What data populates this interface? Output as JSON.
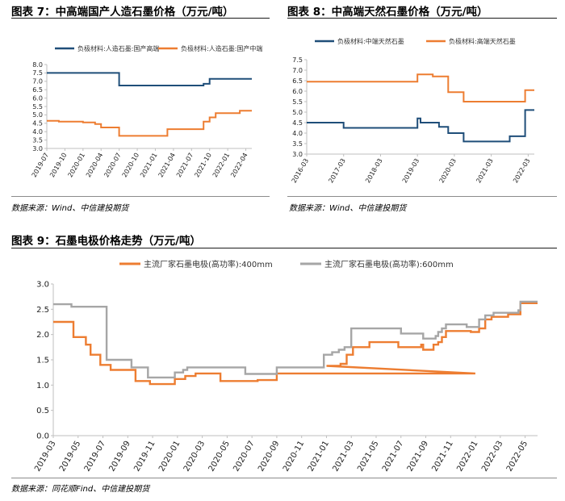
{
  "fig7": {
    "title": "图表 7：中高端国产人造石墨价格（万元/吨）",
    "source": "数据来源：Wind、中信建投期货"
  },
  "fig8": {
    "title": "图表 8：中高端天然石墨价格（万元/吨）",
    "source": "数据来源：Wind、中信建投期货"
  },
  "fig9": {
    "title": "图表 9：石墨电极价格走势（万元/吨）",
    "source": "数据来源：同花顺Find、中信建投期货"
  },
  "colors": {
    "blue": "#1f4e79",
    "orange": "#ed7d31",
    "gray": "#a6a6a6",
    "axis": "#bfbfbf"
  },
  "chart_data": [
    {
      "type": "line",
      "title": "",
      "xlabel": "",
      "ylabel": "",
      "ylim": [
        3.0,
        8.0
      ],
      "xlim": [
        "2019-07",
        "2022-05"
      ],
      "yticks": [
        "8.0",
        "7.5",
        "7.0",
        "6.5",
        "6.0",
        "5.5",
        "5.0",
        "4.5",
        "4.0",
        "3.5",
        "3.0"
      ],
      "xticks": [
        "2019-07",
        "2019-10",
        "2020-01",
        "2020-04",
        "2020-07",
        "2020-10",
        "2021-01",
        "2021-04",
        "2021-07",
        "2021-10",
        "2022-01",
        "2022-04"
      ],
      "legend_position": "top",
      "grid": false,
      "series": [
        {
          "name": "负极材料:人造石墨:国产高端",
          "color": "blue",
          "points": [
            [
              "2019-07",
              7.5
            ],
            [
              "2020-07",
              7.5
            ],
            [
              "2020-07",
              6.75
            ],
            [
              "2021-09",
              6.75
            ],
            [
              "2021-09",
              6.85
            ],
            [
              "2021-10",
              6.85
            ],
            [
              "2021-10",
              7.15
            ],
            [
              "2022-05",
              7.15
            ]
          ]
        },
        {
          "name": "负极材料:人造石墨:国产中端",
          "color": "orange",
          "points": [
            [
              "2019-07",
              4.65
            ],
            [
              "2019-09",
              4.65
            ],
            [
              "2019-09",
              4.6
            ],
            [
              "2020-01",
              4.6
            ],
            [
              "2020-01",
              4.55
            ],
            [
              "2020-03",
              4.55
            ],
            [
              "2020-03",
              4.45
            ],
            [
              "2020-04",
              4.45
            ],
            [
              "2020-04",
              4.25
            ],
            [
              "2020-07",
              4.25
            ],
            [
              "2020-07",
              3.75
            ],
            [
              "2021-03",
              3.75
            ],
            [
              "2021-03",
              4.15
            ],
            [
              "2021-09",
              4.15
            ],
            [
              "2021-09",
              4.6
            ],
            [
              "2021-10",
              4.6
            ],
            [
              "2021-10",
              4.85
            ],
            [
              "2021-11",
              4.85
            ],
            [
              "2021-11",
              5.1
            ],
            [
              "2022-03",
              5.1
            ],
            [
              "2022-03",
              5.25
            ],
            [
              "2022-05",
              5.25
            ]
          ]
        }
      ]
    },
    {
      "type": "line",
      "title": "",
      "xlabel": "",
      "ylabel": "",
      "ylim": [
        3.0,
        7.5
      ],
      "xlim": [
        "2016-03",
        "2022-05"
      ],
      "yticks": [
        "7.5",
        "7.0",
        "6.5",
        "6.0",
        "5.5",
        "5.0",
        "4.5",
        "4.0",
        "3.5",
        "3.0"
      ],
      "xticks": [
        "2016-03",
        "2017-03",
        "2018-03",
        "2019-03",
        "2020-03",
        "2021-03",
        "2022-03"
      ],
      "legend_position": "top",
      "grid": false,
      "series": [
        {
          "name": "负极材料:中端天然石墨",
          "color": "blue",
          "points": [
            [
              "2016-03",
              4.5
            ],
            [
              "2017-03",
              4.5
            ],
            [
              "2017-03",
              4.25
            ],
            [
              "2019-03",
              4.25
            ],
            [
              "2019-03",
              4.7
            ],
            [
              "2019-04",
              4.7
            ],
            [
              "2019-04",
              4.5
            ],
            [
              "2019-10",
              4.5
            ],
            [
              "2019-10",
              4.3
            ],
            [
              "2020-01",
              4.3
            ],
            [
              "2020-01",
              4.0
            ],
            [
              "2020-06",
              4.0
            ],
            [
              "2020-06",
              3.6
            ],
            [
              "2021-09",
              3.6
            ],
            [
              "2021-09",
              3.85
            ],
            [
              "2022-02",
              3.85
            ],
            [
              "2022-02",
              5.1
            ],
            [
              "2022-05",
              5.1
            ]
          ]
        },
        {
          "name": "负极材料:高端天然石墨",
          "color": "orange",
          "points": [
            [
              "2016-03",
              6.45
            ],
            [
              "2019-03",
              6.45
            ],
            [
              "2019-03",
              6.8
            ],
            [
              "2019-08",
              6.8
            ],
            [
              "2019-08",
              6.7
            ],
            [
              "2020-01",
              6.7
            ],
            [
              "2020-01",
              5.95
            ],
            [
              "2020-06",
              5.95
            ],
            [
              "2020-06",
              5.5
            ],
            [
              "2022-02",
              5.5
            ],
            [
              "2022-02",
              6.05
            ],
            [
              "2022-05",
              6.05
            ]
          ]
        }
      ]
    },
    {
      "type": "line",
      "title": "",
      "xlabel": "",
      "ylabel": "",
      "ylim": [
        0.0,
        3.0
      ],
      "xlim": [
        "2019-03",
        "2022-06"
      ],
      "yticks": [
        "3.0",
        "2.5",
        "2.0",
        "1.5",
        "1.0",
        "0.5",
        "0.0"
      ],
      "xticks": [
        "2019-03",
        "2019-05",
        "2019-07",
        "2019-09",
        "2019-11",
        "2020-01",
        "2020-03",
        "2020-05",
        "2020-07",
        "2020-09",
        "2020-11",
        "2021-01",
        "2021-03",
        "2021-05",
        "2021-07",
        "2021-09",
        "2021-11",
        "2022-01",
        "2022-03",
        "2022-05"
      ],
      "legend_position": "top",
      "grid": false,
      "series": [
        {
          "name": "主流厂家石墨电极(高功率):400mm",
          "color": "orange",
          "points": [
            [
              "2019-03-01",
              2.25
            ],
            [
              "2019-04-20",
              2.25
            ],
            [
              "2019-04-20",
              1.95
            ],
            [
              "2019-05-20",
              1.95
            ],
            [
              "2019-05-20",
              1.8
            ],
            [
              "2019-06-01",
              1.8
            ],
            [
              "2019-06-01",
              1.6
            ],
            [
              "2019-06-25",
              1.6
            ],
            [
              "2019-06-25",
              1.4
            ],
            [
              "2019-07-20",
              1.4
            ],
            [
              "2019-07-20",
              1.3
            ],
            [
              "2019-09-20",
              1.3
            ],
            [
              "2019-09-20",
              1.08
            ],
            [
              "2019-10-25",
              1.08
            ],
            [
              "2019-10-25",
              1.02
            ],
            [
              "2019-12-25",
              1.02
            ],
            [
              "2019-12-25",
              1.12
            ],
            [
              "2020-01-20",
              1.12
            ],
            [
              "2020-01-20",
              1.18
            ],
            [
              "2020-02-15",
              1.18
            ],
            [
              "2020-02-15",
              1.23
            ],
            [
              "2020-04-15",
              1.23
            ],
            [
              "2020-04-15",
              1.08
            ],
            [
              "2020-07-15",
              1.08
            ],
            [
              "2020-07-15",
              1.1
            ],
            [
              "2020-09-01",
              1.1
            ],
            [
              "2020-09-01",
              1.23
            ],
            [
              "2020-12-25",
              1.23
            ],
            [
              "2021-12-31",
              1.23
            ],
            [
              "2021-01-01",
              1.38
            ],
            [
              "2021-02-05",
              1.38
            ],
            [
              "2021-02-05",
              1.42
            ],
            [
              "2021-02-20",
              1.42
            ],
            [
              "2021-02-20",
              1.6
            ],
            [
              "2021-03-05",
              1.6
            ],
            [
              "2021-03-05",
              1.75
            ],
            [
              "2021-04-15",
              1.75
            ],
            [
              "2021-04-15",
              1.85
            ],
            [
              "2021-06-25",
              1.85
            ],
            [
              "2021-06-25",
              1.75
            ],
            [
              "2021-08-20",
              1.75
            ],
            [
              "2021-08-20",
              1.8
            ],
            [
              "2021-08-25",
              1.8
            ],
            [
              "2021-08-25",
              1.7
            ],
            [
              "2021-09-20",
              1.7
            ],
            [
              "2021-09-20",
              1.8
            ],
            [
              "2021-10-01",
              1.8
            ],
            [
              "2021-10-01",
              1.85
            ],
            [
              "2021-10-10",
              1.85
            ],
            [
              "2021-10-10",
              1.95
            ],
            [
              "2021-10-20",
              1.95
            ],
            [
              "2021-10-20",
              2.07
            ],
            [
              "2021-12-20",
              2.07
            ],
            [
              "2021-12-20",
              2.05
            ],
            [
              "2022-01-10",
              2.05
            ],
            [
              "2022-01-10",
              2.12
            ],
            [
              "2022-01-25",
              2.12
            ],
            [
              "2022-01-25",
              2.3
            ],
            [
              "2022-02-10",
              2.3
            ],
            [
              "2022-02-10",
              2.35
            ],
            [
              "2022-03-20",
              2.35
            ],
            [
              "2022-03-20",
              2.4
            ],
            [
              "2022-04-20",
              2.4
            ],
            [
              "2022-04-20",
              2.62
            ],
            [
              "2022-06-01",
              2.62
            ]
          ]
        },
        {
          "name": "主流厂家石墨电极(高功率):600mm",
          "color": "gray",
          "points": [
            [
              "2019-03-01",
              2.6
            ],
            [
              "2019-04-15",
              2.6
            ],
            [
              "2019-04-15",
              2.55
            ],
            [
              "2019-07-01",
              2.55
            ],
            [
              "2019-07-01",
              2.55
            ],
            [
              "2019-07-10",
              2.55
            ],
            [
              "2019-07-10",
              1.5
            ],
            [
              "2019-09-10",
              1.5
            ],
            [
              "2019-09-10",
              1.35
            ],
            [
              "2019-10-20",
              1.35
            ],
            [
              "2019-10-20",
              1.15
            ],
            [
              "2019-12-25",
              1.15
            ],
            [
              "2019-12-25",
              1.25
            ],
            [
              "2020-01-15",
              1.25
            ],
            [
              "2020-01-15",
              1.3
            ],
            [
              "2020-01-25",
              1.3
            ],
            [
              "2020-01-25",
              1.35
            ],
            [
              "2020-06-15",
              1.35
            ],
            [
              "2020-06-15",
              1.22
            ],
            [
              "2020-09-01",
              1.22
            ],
            [
              "2020-09-01",
              1.35
            ],
            [
              "2020-12-25",
              1.35
            ],
            [
              "2020-12-25",
              1.6
            ],
            [
              "2021-01-15",
              1.6
            ],
            [
              "2021-01-15",
              1.65
            ],
            [
              "2021-02-01",
              1.65
            ],
            [
              "2021-02-01",
              1.7
            ],
            [
              "2021-02-15",
              1.7
            ],
            [
              "2021-02-15",
              1.75
            ],
            [
              "2021-03-01",
              1.75
            ],
            [
              "2021-03-01",
              2.12
            ],
            [
              "2021-07-01",
              2.12
            ],
            [
              "2021-07-01",
              2.02
            ],
            [
              "2021-08-25",
              2.02
            ],
            [
              "2021-08-25",
              1.92
            ],
            [
              "2021-09-25",
              1.92
            ],
            [
              "2021-09-25",
              1.97
            ],
            [
              "2021-10-01",
              1.97
            ],
            [
              "2021-10-01",
              2.05
            ],
            [
              "2021-10-10",
              2.05
            ],
            [
              "2021-10-10",
              2.12
            ],
            [
              "2021-10-20",
              2.12
            ],
            [
              "2021-10-20",
              2.2
            ],
            [
              "2021-12-10",
              2.2
            ],
            [
              "2021-12-10",
              2.15
            ],
            [
              "2022-01-10",
              2.15
            ],
            [
              "2022-01-10",
              2.3
            ],
            [
              "2022-01-25",
              2.3
            ],
            [
              "2022-01-25",
              2.38
            ],
            [
              "2022-02-15",
              2.38
            ],
            [
              "2022-02-15",
              2.43
            ],
            [
              "2022-04-15",
              2.43
            ],
            [
              "2022-04-15",
              2.48
            ],
            [
              "2022-04-20",
              2.48
            ],
            [
              "2022-04-20",
              2.65
            ],
            [
              "2022-06-01",
              2.65
            ]
          ]
        }
      ]
    }
  ]
}
